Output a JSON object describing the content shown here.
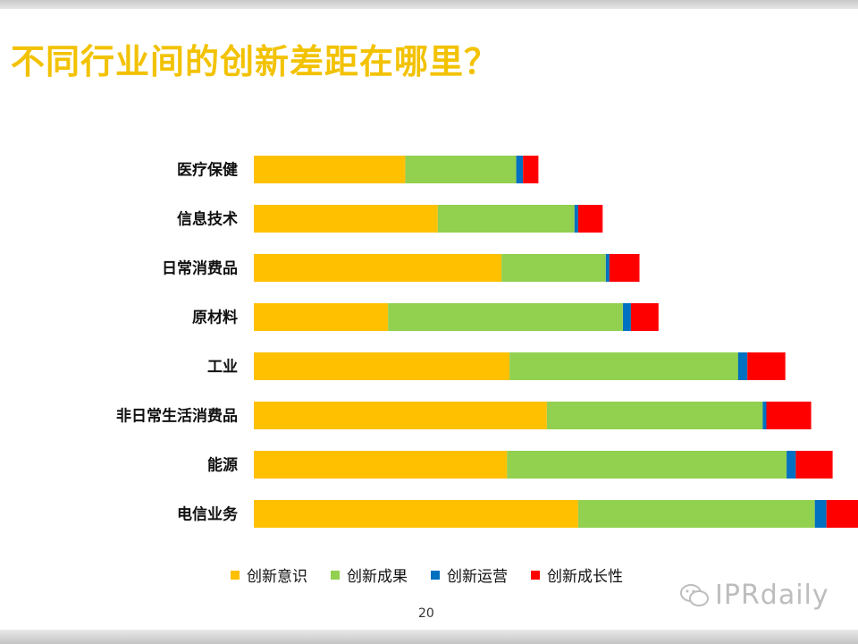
{
  "title": "不同行业间的创新差距在哪里？",
  "page_number": "20",
  "watermark": "IPRdaily",
  "chart_data": {
    "type": "bar",
    "orientation": "horizontal",
    "stacked": true,
    "categories": [
      "医疗保健",
      "信息技术",
      "日常消费品",
      "原材料",
      "工业",
      "非日常生活消费品",
      "能源",
      "电信业务"
    ],
    "series": [
      {
        "name": "创新意识",
        "color": "#FFC000",
        "values": [
          24.7,
          30.0,
          40.4,
          21.9,
          41.7,
          47.8,
          41.3,
          52.9
        ]
      },
      {
        "name": "创新成果",
        "color": "#92D050",
        "values": [
          18.1,
          22.3,
          17.0,
          38.3,
          37.3,
          35.2,
          45.6,
          38.6
        ]
      },
      {
        "name": "创新运营",
        "color": "#0070C0",
        "values": [
          1.1,
          0.6,
          0.6,
          1.3,
          1.5,
          0.6,
          1.5,
          1.9
        ]
      },
      {
        "name": "创新成长性",
        "color": "#FF0000",
        "values": [
          2.5,
          4.0,
          4.9,
          4.5,
          6.2,
          7.3,
          6.0,
          6.0
        ]
      }
    ],
    "xlim": [
      0,
      100
    ],
    "grid": false,
    "legend_position": "bottom"
  }
}
